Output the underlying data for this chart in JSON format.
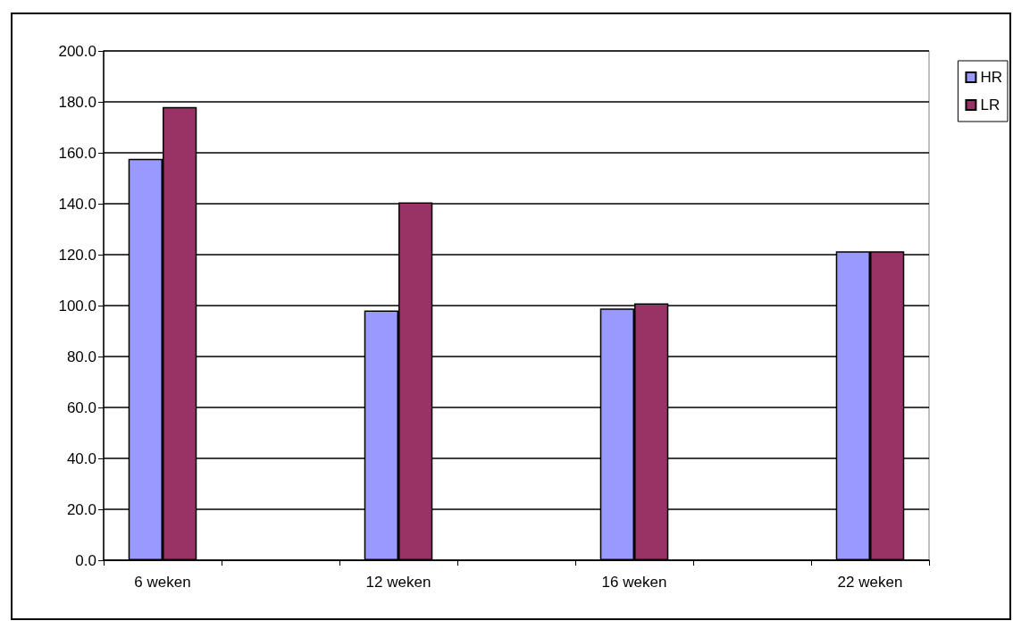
{
  "chart_data": {
    "type": "bar",
    "categories": [
      "6 weken",
      null,
      "12 weken",
      null,
      "16 weken",
      null,
      "22 weken"
    ],
    "series": [
      {
        "name": "HR",
        "color": "#9999ff",
        "values": [
          157.6,
          null,
          98.1,
          null,
          98.9,
          null,
          121.3
        ]
      },
      {
        "name": "LR",
        "color": "#993366",
        "values": [
          178.0,
          null,
          140.5,
          null,
          100.9,
          null,
          121.3
        ]
      }
    ],
    "ylim": [
      0,
      200
    ],
    "yticks": [
      {
        "value": 0,
        "label": "0.0"
      },
      {
        "value": 20,
        "label": "20.0"
      },
      {
        "value": 40,
        "label": "40.0"
      },
      {
        "value": 60,
        "label": "60.0"
      },
      {
        "value": 80,
        "label": "80.0"
      },
      {
        "value": 100,
        "label": "100.0"
      },
      {
        "value": 120,
        "label": "120.0"
      },
      {
        "value": 140,
        "label": "140.0"
      },
      {
        "value": 160,
        "label": "160.0"
      },
      {
        "value": 180,
        "label": "180.0"
      },
      {
        "value": 200,
        "label": "200.0"
      }
    ],
    "grid": "y",
    "legend": "right"
  }
}
